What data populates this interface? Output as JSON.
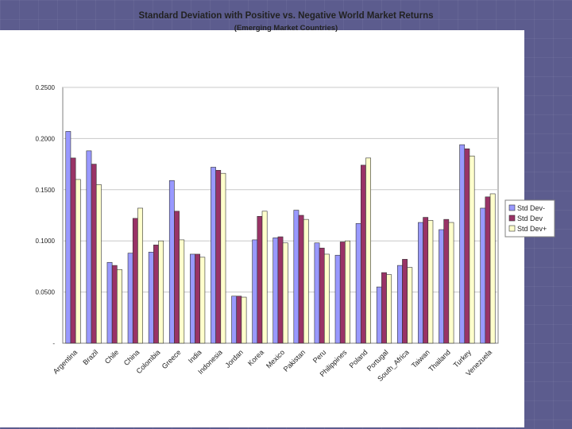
{
  "chart_data": {
    "type": "bar",
    "title": "Standard Deviation with Positive vs. Negative World Market Returns",
    "subtitle": "(Emerging Market Countries)",
    "xlabel": "",
    "ylabel": "",
    "ylim": [
      0,
      0.25
    ],
    "y_ticks": [
      0,
      0.05,
      0.1,
      0.15,
      0.2,
      0.25
    ],
    "y_tick_labels": [
      "-",
      "0.0500",
      "0.1000",
      "0.1500",
      "0.2000",
      "0.2500"
    ],
    "grid": true,
    "legend_position": "right",
    "categories": [
      "Argentina",
      "Brazil",
      "Chile",
      "China",
      "Colombia",
      "Greece",
      "India",
      "Indonesia",
      "Jordan",
      "Korea",
      "Mexico",
      "Pakistan",
      "Peru",
      "Philippines",
      "Poland",
      "Portugal",
      "South_Africa",
      "Taiwan",
      "Thailand",
      "Turkey",
      "Venezuela"
    ],
    "series": [
      {
        "name": "Std Dev-",
        "color": "#9999ff",
        "values": [
          0.207,
          0.188,
          0.079,
          0.088,
          0.089,
          0.159,
          0.087,
          0.172,
          0.046,
          0.101,
          0.103,
          0.13,
          0.098,
          0.086,
          0.117,
          0.055,
          0.076,
          0.118,
          0.111,
          0.194,
          0.132
        ]
      },
      {
        "name": "Std Dev",
        "color": "#993366",
        "values": [
          0.181,
          0.175,
          0.076,
          0.122,
          0.096,
          0.129,
          0.087,
          0.169,
          0.046,
          0.124,
          0.104,
          0.125,
          0.093,
          0.099,
          0.174,
          0.069,
          0.082,
          0.123,
          0.121,
          0.19,
          0.143
        ]
      },
      {
        "name": "Std Dev+",
        "color": "#ffffcc",
        "values": [
          0.16,
          0.155,
          0.072,
          0.132,
          0.1,
          0.101,
          0.084,
          0.166,
          0.045,
          0.129,
          0.098,
          0.121,
          0.087,
          0.1,
          0.181,
          0.067,
          0.074,
          0.12,
          0.118,
          0.183,
          0.146
        ]
      }
    ]
  }
}
